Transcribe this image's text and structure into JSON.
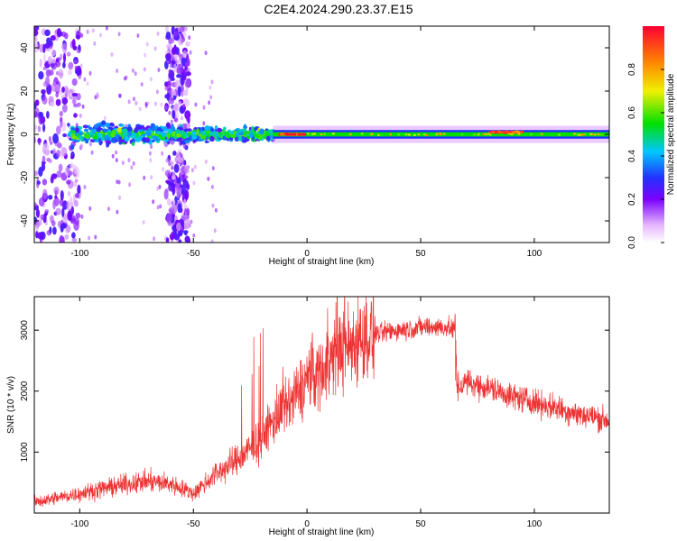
{
  "title": "C2E4.2024.290.23.37.E15",
  "chart_data": [
    {
      "type": "heatmap",
      "xlabel": "Height of straight line (km)",
      "ylabel": "Frequency (Hz)",
      "xlim": [
        -120,
        133
      ],
      "ylim": [
        -50,
        50
      ],
      "x_ticks": [
        -100,
        -50,
        0,
        50,
        100
      ],
      "y_ticks": [
        -40,
        -20,
        0,
        20,
        40
      ],
      "colorbar": {
        "label": "Normalized spectral amplitude",
        "range": [
          0.0,
          1.0
        ],
        "ticks": [
          0.0,
          0.2,
          0.4,
          0.6,
          0.8
        ],
        "tick_labels": [
          "0.0",
          "0.2",
          "0.4",
          "0.6",
          "0.8"
        ]
      },
      "features": [
        {
          "x_range": [
            -120,
            -100
          ],
          "y_range": [
            -50,
            50
          ],
          "amplitude": 0.15
        },
        {
          "x_range": [
            -62,
            -52
          ],
          "y_range": [
            -50,
            50
          ],
          "amplitude": 0.15
        },
        {
          "x_range": [
            -105,
            -15
          ],
          "y_range": [
            -5,
            5
          ],
          "amplitude": 0.35
        },
        {
          "x_range": [
            -15,
            133
          ],
          "y_range": [
            -1.5,
            1.5
          ],
          "amplitude": 0.6
        },
        {
          "x_range": [
            -12,
            -1
          ],
          "y_range": [
            -0.8,
            0.8
          ],
          "amplitude": 0.9
        },
        {
          "x_range": [
            80,
            95
          ],
          "y_range": [
            0.5,
            2
          ],
          "amplitude": 0.85
        }
      ],
      "grid": false
    },
    {
      "type": "line",
      "xlabel": "Height of straight line (km)",
      "ylabel": "SNR (10 * v/v)",
      "xlim": [
        -120,
        133
      ],
      "ylim": [
        0,
        3550
      ],
      "x_ticks": [
        -100,
        -50,
        0,
        50,
        100
      ],
      "y_ticks": [
        1000,
        2000,
        3000
      ],
      "color": "#ee3333",
      "series": [
        {
          "x": [
            -120,
            -110,
            -100,
            -90,
            -80,
            -70,
            -60,
            -50,
            -40,
            -30,
            -20,
            -15,
            -10,
            -5,
            0,
            5,
            10,
            15,
            20,
            25,
            30,
            40,
            50,
            60,
            65,
            66,
            70,
            80,
            90,
            100,
            110,
            120,
            133
          ],
          "values": [
            180,
            250,
            320,
            400,
            470,
            520,
            480,
            320,
            650,
            880,
            1220,
            1500,
            1700,
            1900,
            2200,
            2300,
            2500,
            2700,
            2780,
            2880,
            2940,
            3000,
            3050,
            3050,
            3000,
            2050,
            2150,
            2050,
            1920,
            1820,
            1720,
            1620,
            1520
          ]
        }
      ],
      "grid": false
    }
  ]
}
